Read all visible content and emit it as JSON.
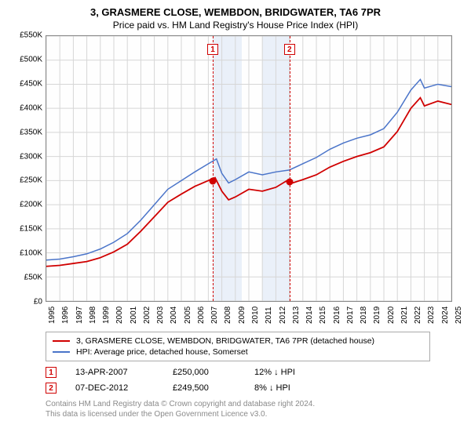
{
  "title": "3, GRASMERE CLOSE, WEMBDON, BRIDGWATER, TA6 7PR",
  "subtitle": "Price paid vs. HM Land Registry's House Price Index (HPI)",
  "chart": {
    "type": "line",
    "ylim": [
      0,
      550000
    ],
    "ytick_step": 50000,
    "y_ticks": [
      "£0",
      "£50K",
      "£100K",
      "£150K",
      "£200K",
      "£250K",
      "£300K",
      "£350K",
      "£400K",
      "£450K",
      "£500K",
      "£550K"
    ],
    "xlim": [
      1995,
      2025
    ],
    "x_ticks": [
      "1995",
      "1996",
      "1997",
      "1998",
      "1999",
      "2000",
      "2001",
      "2002",
      "2003",
      "2004",
      "2005",
      "2006",
      "2007",
      "2008",
      "2009",
      "2010",
      "2011",
      "2012",
      "2013",
      "2014",
      "2015",
      "2016",
      "2017",
      "2018",
      "2019",
      "2020",
      "2021",
      "2022",
      "2023",
      "2024",
      "2025"
    ],
    "grid_color": "#d6d6d6",
    "shade_color": "#eaf0f9",
    "background_color": "#fefefe",
    "series": [
      {
        "name": "property",
        "color": "#d00000",
        "width": 1.8,
        "data": [
          [
            1995,
            72000
          ],
          [
            1996,
            74000
          ],
          [
            1997,
            78000
          ],
          [
            1998,
            82000
          ],
          [
            1999,
            90000
          ],
          [
            2000,
            102000
          ],
          [
            2001,
            118000
          ],
          [
            2002,
            145000
          ],
          [
            2003,
            175000
          ],
          [
            2004,
            205000
          ],
          [
            2005,
            222000
          ],
          [
            2006,
            238000
          ],
          [
            2007,
            250000
          ],
          [
            2007.5,
            256000
          ],
          [
            2008,
            228000
          ],
          [
            2008.5,
            210000
          ],
          [
            2009,
            216000
          ],
          [
            2010,
            232000
          ],
          [
            2011,
            228000
          ],
          [
            2012,
            236000
          ],
          [
            2012.8,
            249500
          ],
          [
            2013,
            243000
          ],
          [
            2014,
            252000
          ],
          [
            2015,
            262000
          ],
          [
            2016,
            278000
          ],
          [
            2017,
            290000
          ],
          [
            2018,
            300000
          ],
          [
            2019,
            308000
          ],
          [
            2020,
            320000
          ],
          [
            2021,
            352000
          ],
          [
            2022,
            400000
          ],
          [
            2022.7,
            422000
          ],
          [
            2023,
            405000
          ],
          [
            2024,
            415000
          ],
          [
            2025,
            408000
          ]
        ]
      },
      {
        "name": "hpi",
        "color": "#4a74c9",
        "width": 1.5,
        "data": [
          [
            1995,
            85000
          ],
          [
            1996,
            87000
          ],
          [
            1997,
            92000
          ],
          [
            1998,
            98000
          ],
          [
            1999,
            108000
          ],
          [
            2000,
            122000
          ],
          [
            2001,
            140000
          ],
          [
            2002,
            168000
          ],
          [
            2003,
            200000
          ],
          [
            2004,
            232000
          ],
          [
            2005,
            250000
          ],
          [
            2006,
            268000
          ],
          [
            2007,
            285000
          ],
          [
            2007.6,
            295000
          ],
          [
            2008,
            265000
          ],
          [
            2008.5,
            245000
          ],
          [
            2009,
            252000
          ],
          [
            2010,
            268000
          ],
          [
            2011,
            262000
          ],
          [
            2012,
            268000
          ],
          [
            2013,
            272000
          ],
          [
            2014,
            285000
          ],
          [
            2015,
            298000
          ],
          [
            2016,
            315000
          ],
          [
            2017,
            328000
          ],
          [
            2018,
            338000
          ],
          [
            2019,
            345000
          ],
          [
            2020,
            358000
          ],
          [
            2021,
            392000
          ],
          [
            2022,
            438000
          ],
          [
            2022.7,
            460000
          ],
          [
            2023,
            442000
          ],
          [
            2024,
            450000
          ],
          [
            2025,
            445000
          ]
        ]
      }
    ],
    "events": [
      {
        "label": "1",
        "year": 2007.28,
        "price": 250000
      },
      {
        "label": "2",
        "year": 2012.94,
        "price": 249500
      }
    ],
    "shaded_bands": [
      {
        "from": 2007.28,
        "to": 2009.4
      },
      {
        "from": 2010.9,
        "to": 2012.94
      }
    ]
  },
  "legend": {
    "series1": "3, GRASMERE CLOSE, WEMBDON, BRIDGWATER, TA6 7PR (detached house)",
    "series2": "HPI: Average price, detached house, Somerset"
  },
  "sales": [
    {
      "label": "1",
      "date": "13-APR-2007",
      "price": "£250,000",
      "delta": "12% ↓ HPI"
    },
    {
      "label": "2",
      "date": "07-DEC-2012",
      "price": "£249,500",
      "delta": "8% ↓ HPI"
    }
  ],
  "footer": {
    "line1": "Contains HM Land Registry data © Crown copyright and database right 2024.",
    "line2": "This data is licensed under the Open Government Licence v3.0."
  },
  "colors": {
    "property": "#d00000",
    "hpi": "#4a74c9",
    "text": "#000000",
    "footer": "#8a8a8a"
  }
}
